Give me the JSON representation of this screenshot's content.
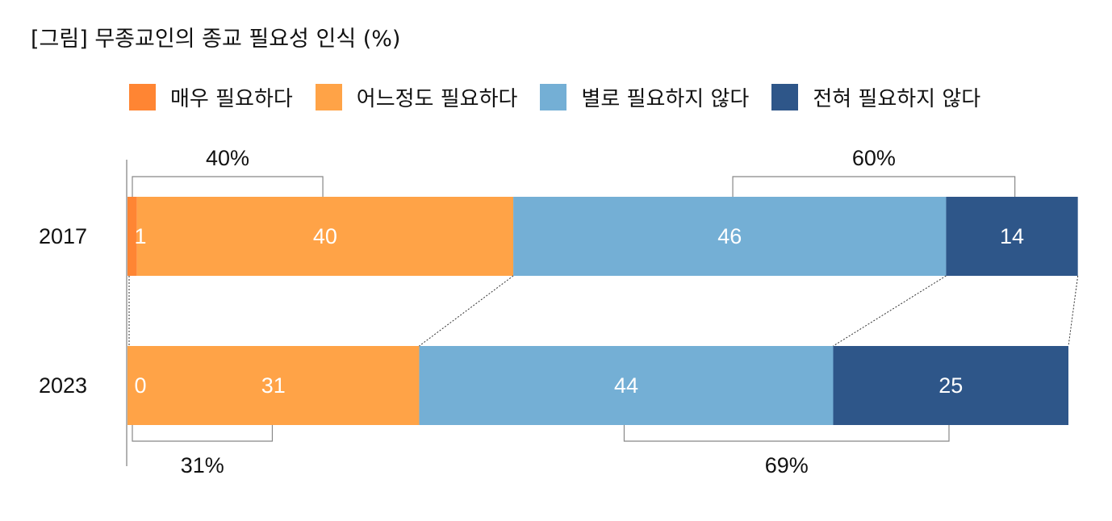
{
  "title": "[그림] 무종교인의 종교 필요성 인식 (%)",
  "chart_data": {
    "type": "bar",
    "orientation": "horizontal",
    "stacked": true,
    "categories": [
      "2017",
      "2023"
    ],
    "series": [
      {
        "name": "매우 필요하다",
        "values": [
          1,
          0
        ],
        "color": "#FF8533"
      },
      {
        "name": "어느정도 필요하다",
        "values": [
          40,
          31
        ],
        "color": "#FFA347"
      },
      {
        "name": "별로 필요하지 않다",
        "values": [
          46,
          44
        ],
        "color": "#74AFD5"
      },
      {
        "name": "전혀 필요하지 않다",
        "values": [
          14,
          25
        ],
        "color": "#2E5689"
      }
    ],
    "data_labels": [
      [
        "1",
        "40",
        "46",
        "14"
      ],
      [
        "0",
        "31",
        "44",
        "25"
      ]
    ],
    "bracket_labels": [
      {
        "category": "2017",
        "group": "needed",
        "text": "40%",
        "position": "above"
      },
      {
        "category": "2017",
        "group": "not-needed",
        "text": "60%",
        "position": "above"
      },
      {
        "category": "2023",
        "group": "needed",
        "text": "31%",
        "position": "below"
      },
      {
        "category": "2023",
        "group": "not-needed",
        "text": "69%",
        "position": "below"
      }
    ],
    "xlim": [
      0,
      100
    ],
    "legend_position": "top",
    "grid": false
  }
}
